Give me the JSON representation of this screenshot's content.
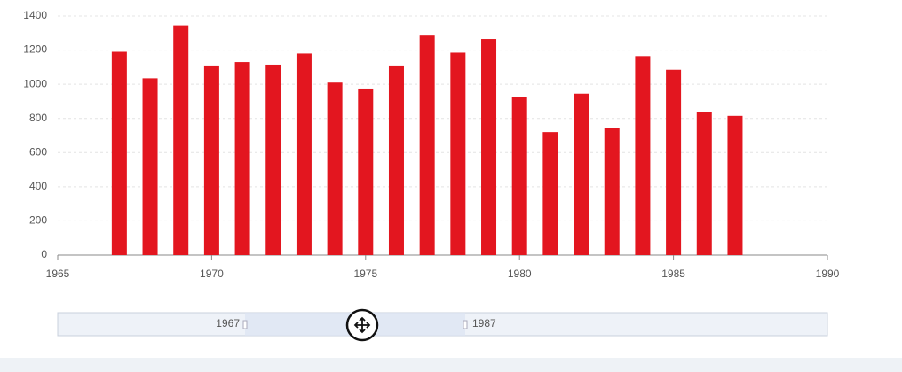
{
  "chart_data": {
    "type": "bar",
    "x": [
      1967,
      1968,
      1969,
      1970,
      1971,
      1972,
      1973,
      1974,
      1975,
      1976,
      1977,
      1978,
      1979,
      1980,
      1981,
      1982,
      1983,
      1984,
      1985,
      1986,
      1987
    ],
    "values": [
      1190,
      1035,
      1345,
      1110,
      1130,
      1115,
      1180,
      1010,
      975,
      1110,
      1285,
      1185,
      1265,
      925,
      720,
      945,
      745,
      1165,
      1085,
      835,
      815
    ],
    "color": "#e3161f",
    "xlim": [
      1965,
      1990
    ],
    "xticks": [
      1965,
      1970,
      1975,
      1980,
      1985,
      1990
    ],
    "ylim": [
      0,
      1400
    ],
    "yticks": [
      0,
      200,
      400,
      600,
      800,
      1000,
      1200,
      1400
    ],
    "grid": true,
    "data_zoom": {
      "start_label": "1967",
      "end_label": "1987"
    }
  }
}
